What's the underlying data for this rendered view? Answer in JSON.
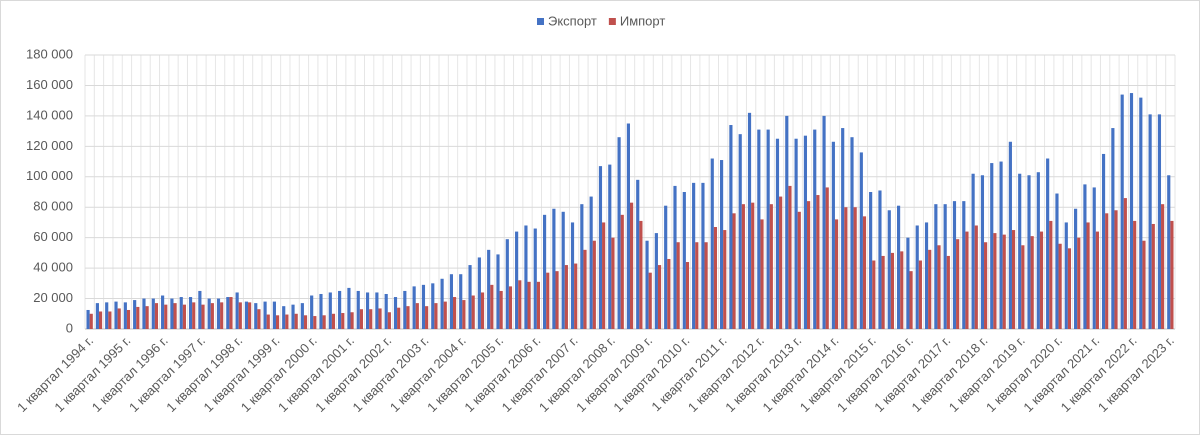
{
  "chart_data": {
    "type": "bar",
    "categories": [
      "1 квартал 1994 г.",
      null,
      null,
      null,
      "1 квартал 1995 г.",
      null,
      null,
      null,
      "1 квартал 1996 г.",
      null,
      null,
      null,
      "1 квартал 1997 г.",
      null,
      null,
      null,
      "1 квартал 1998 г.",
      null,
      null,
      null,
      "1 квартал 1999 г.",
      null,
      null,
      null,
      "1 квартал 2000 г.",
      null,
      null,
      null,
      "1 квартал 2001 г.",
      null,
      null,
      null,
      "1 квартал 2002 г.",
      null,
      null,
      null,
      "1 квартал 2003 г.",
      null,
      null,
      null,
      "1 квартал 2004 г.",
      null,
      null,
      null,
      "1 квартал 2005 г.",
      null,
      null,
      null,
      "1 квартал 2006 г.",
      null,
      null,
      null,
      "1 квартал 2007 г.",
      null,
      null,
      null,
      "1 квартал 2008 г.",
      null,
      null,
      null,
      "1 квартал 2009 г.",
      null,
      null,
      null,
      "1 квартал 2010 г.",
      null,
      null,
      null,
      "1 квартал 2011 г.",
      null,
      null,
      null,
      "1 квартал 2012 г.",
      null,
      null,
      null,
      "1 квартал 2013 г.",
      null,
      null,
      null,
      "1 квартал 2014 г.",
      null,
      null,
      null,
      "1 квартал 2015 г.",
      null,
      null,
      null,
      "1 квартал 2016 г.",
      null,
      null,
      null,
      "1 квартал 2017 г.",
      null,
      null,
      null,
      "1 квартал 2018 г.",
      null,
      null,
      null,
      "1 квартал 2019 г.",
      null,
      null,
      null,
      "1 квартал 2020 г.",
      null,
      null,
      null,
      "1 квартал 2021 г.",
      null,
      null,
      null,
      "1 квартал 2022 г.",
      null,
      null,
      null,
      "1 квартал 2023 г."
    ],
    "series": [
      {
        "name": "Экспорт",
        "color": "#4472c4",
        "values": [
          12500,
          17000,
          17500,
          18000,
          17500,
          19000,
          20000,
          20000,
          22000,
          20000,
          21000,
          21000,
          25000,
          20000,
          20000,
          21000,
          24000,
          18000,
          17000,
          18000,
          18000,
          15000,
          16000,
          17000,
          22000,
          23000,
          24000,
          25000,
          27000,
          25000,
          24000,
          24000,
          23000,
          21000,
          25000,
          28000,
          29000,
          30000,
          33000,
          36000,
          36000,
          42000,
          47000,
          52000,
          49000,
          59000,
          64000,
          68000,
          66000,
          75000,
          79000,
          77000,
          70000,
          82000,
          87000,
          107000,
          108000,
          126000,
          135000,
          98000,
          58000,
          63000,
          81000,
          94000,
          90000,
          96000,
          96000,
          112000,
          111000,
          134000,
          128000,
          142000,
          131000,
          131000,
          125000,
          140000,
          125000,
          127000,
          131000,
          140000,
          123000,
          132000,
          126000,
          116000,
          90000,
          91000,
          78000,
          81000,
          60000,
          68000,
          70000,
          82000,
          82000,
          84000,
          84000,
          102000,
          101000,
          109000,
          110000,
          123000,
          102000,
          101000,
          103000,
          112000,
          89000,
          70000,
          79000,
          95000,
          93000,
          115000,
          132000,
          154000,
          155000,
          152000,
          141000,
          141000,
          101000
        ]
      },
      {
        "name": "Импорт",
        "color": "#c0504d",
        "values": [
          10000,
          11500,
          11500,
          13500,
          12500,
          14500,
          15000,
          17000,
          16000,
          17000,
          16000,
          17500,
          16000,
          17000,
          17500,
          21000,
          17500,
          17500,
          13000,
          9500,
          9000,
          9500,
          10000,
          9000,
          8500,
          9000,
          10000,
          10500,
          11000,
          13000,
          13000,
          13500,
          11000,
          14000,
          15000,
          17000,
          15000,
          17000,
          18000,
          21000,
          19000,
          22000,
          24000,
          29000,
          25000,
          28000,
          32000,
          31000,
          31000,
          37000,
          38000,
          42000,
          43000,
          52000,
          58000,
          70000,
          60000,
          75000,
          83000,
          71000,
          37000,
          42000,
          46000,
          57000,
          44000,
          57000,
          57000,
          67000,
          65000,
          76000,
          82000,
          83000,
          72000,
          82000,
          87000,
          94000,
          77000,
          84000,
          88000,
          93000,
          72000,
          80000,
          80000,
          74000,
          45000,
          48000,
          50000,
          51000,
          38000,
          45000,
          52000,
          55000,
          48000,
          59000,
          64000,
          68000,
          57000,
          63000,
          62000,
          65000,
          55000,
          61000,
          64000,
          71000,
          56000,
          53000,
          60000,
          70000,
          64000,
          76000,
          78000,
          86000,
          71000,
          58000,
          69000,
          82000,
          71000
        ]
      }
    ],
    "ylim": [
      0,
      180000
    ],
    "yticks": [
      0,
      {
        "value": 20000,
        "label": "20 000"
      },
      {
        "value": 40000,
        "label": "40 000"
      },
      {
        "value": 60000,
        "label": "60 000"
      },
      {
        "value": 80000,
        "label": "80 000"
      },
      {
        "value": 100000,
        "label": "100 000"
      },
      {
        "value": 120000,
        "label": "120 000"
      },
      {
        "value": 140000,
        "label": "140 000"
      },
      {
        "value": 160000,
        "label": "160 000"
      },
      {
        "value": 180000,
        "label": "180 000"
      }
    ],
    "grid": true,
    "legend": "top"
  }
}
